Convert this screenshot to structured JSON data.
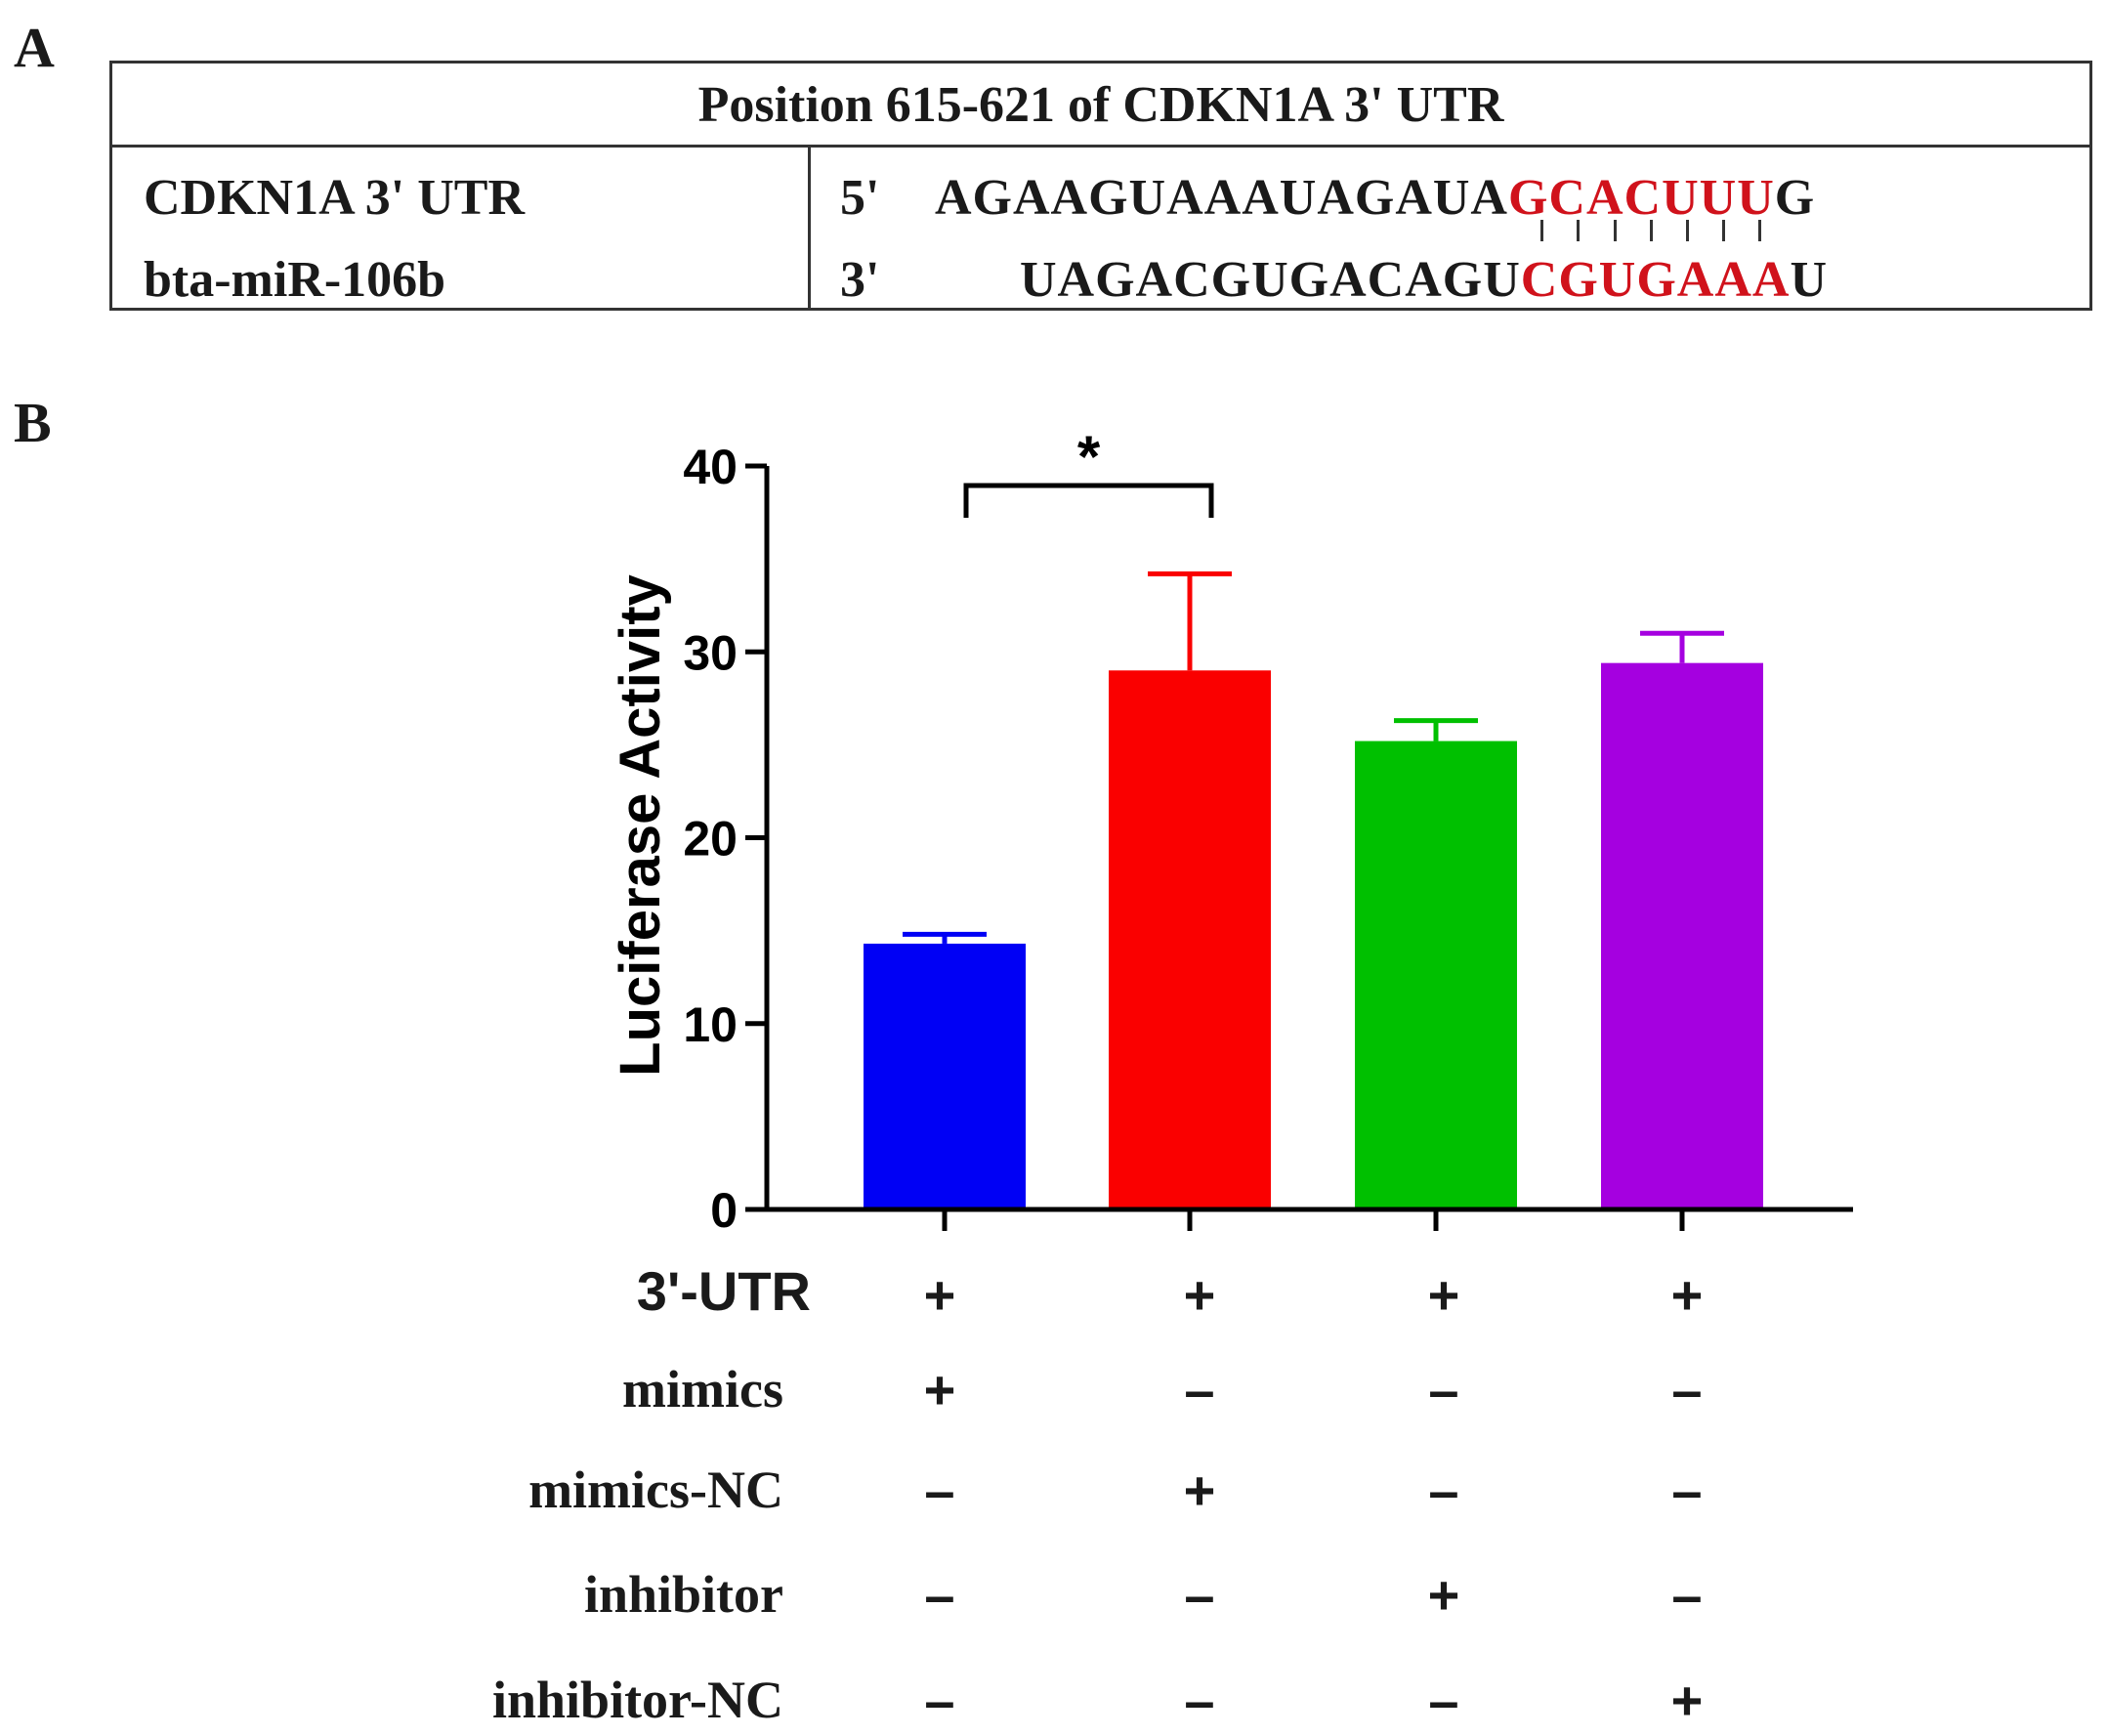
{
  "panel_a": {
    "label": "A",
    "table_title": "Position 615-621 of CDKN1A 3' UTR",
    "rows": [
      {
        "name": "CDKN1A 3' UTR",
        "strand": "5'",
        "seq_before": "AGAAGUAAAUAGAUA",
        "seq_match": "GCACUUU",
        "seq_after": "G"
      },
      {
        "name": "bta-miR-106b",
        "strand": "3'",
        "seq_before": "UAGACGUGACAGU",
        "seq_match": "CGUGAAA",
        "seq_after": "U"
      }
    ],
    "match_color": "#d0121b"
  },
  "panel_b": {
    "label": "B",
    "significance": "*",
    "conditions": [
      {
        "name": "3'-UTR",
        "marks": [
          "+",
          "+",
          "+",
          "+"
        ]
      },
      {
        "name": "mimics",
        "marks": [
          "+",
          "–",
          "–",
          "–"
        ]
      },
      {
        "name": "mimics-NC",
        "marks": [
          "–",
          "+",
          "–",
          "–"
        ]
      },
      {
        "name": "inhibitor",
        "marks": [
          "–",
          "–",
          "+",
          "–"
        ]
      },
      {
        "name": "inhibitor-NC",
        "marks": [
          "–",
          "–",
          "–",
          "+"
        ]
      }
    ]
  },
  "chart_data": {
    "type": "bar",
    "categories": [
      "",
      "",
      "",
      ""
    ],
    "values": [
      14.3,
      29.0,
      25.2,
      29.4
    ],
    "errors": [
      0.5,
      5.2,
      1.1,
      1.6
    ],
    "colors": [
      "#0000f5",
      "#fa0000",
      "#00c000",
      "#a500e0"
    ],
    "title": "",
    "xlabel": "",
    "ylabel": "Luciferase Activity",
    "ylim": [
      0,
      40
    ],
    "yticks": [
      0,
      10,
      20,
      30,
      40
    ],
    "grid": false,
    "significance_brackets": [
      {
        "from": 0,
        "to": 1,
        "label": "*"
      }
    ]
  }
}
